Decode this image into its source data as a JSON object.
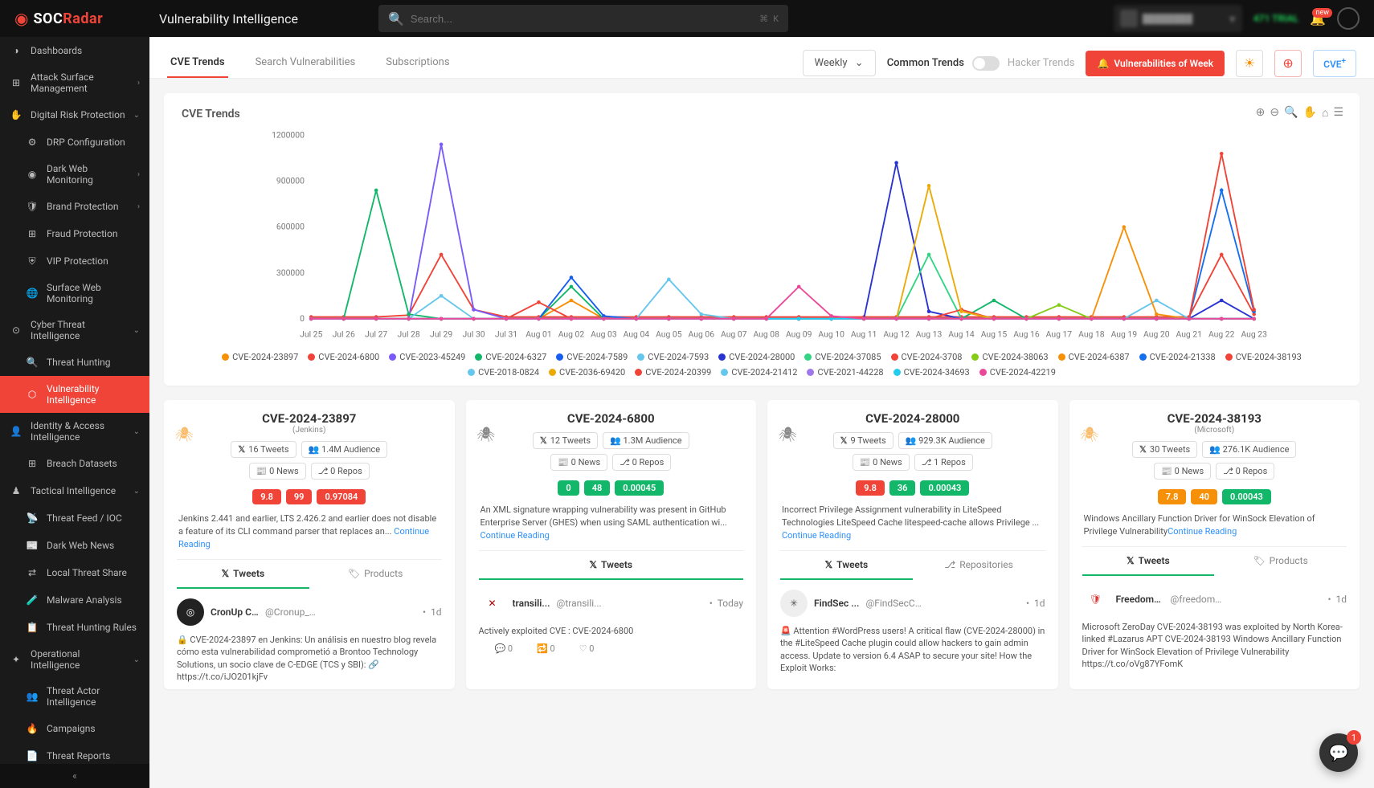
{
  "brand": {
    "part1": "SOC",
    "part2": "Radar"
  },
  "page_title": "Vulnerability Intelligence",
  "search": {
    "placeholder": "Search...",
    "shortcut1": "⌘",
    "shortcut2": "K"
  },
  "topbar": {
    "trial_text": "471 TRIAL",
    "bell_badge": "new"
  },
  "sidebar": [
    {
      "label": "Dashboards",
      "icon": "◑",
      "chev": ""
    },
    {
      "label": "Attack Surface Management",
      "icon": "⊞",
      "chev": "›"
    },
    {
      "label": "Digital Risk Protection",
      "icon": "✋",
      "chev": "⌄"
    },
    {
      "label": "DRP Configuration",
      "icon": "⚙",
      "sub": true
    },
    {
      "label": "Dark Web Monitoring",
      "icon": "◉",
      "sub": true,
      "chev": "›"
    },
    {
      "label": "Brand Protection",
      "icon": "🛡",
      "sub": true,
      "chev": "›"
    },
    {
      "label": "Fraud Protection",
      "icon": "⊞",
      "sub": true
    },
    {
      "label": "VIP Protection",
      "icon": "⛨",
      "sub": true
    },
    {
      "label": "Surface Web Monitoring",
      "icon": "🌐",
      "sub": true
    },
    {
      "label": "Cyber Threat Intelligence",
      "icon": "⊙",
      "chev": "⌄"
    },
    {
      "label": "Threat Hunting",
      "icon": "🔍",
      "sub": true
    },
    {
      "label": "Vulnerability Intelligence",
      "icon": "⬡",
      "sub": true,
      "active": true
    },
    {
      "label": "Identity & Access Intelligence",
      "icon": "👤",
      "chev": "⌄"
    },
    {
      "label": "Breach Datasets",
      "icon": "⊞",
      "sub": true
    },
    {
      "label": "Tactical Intelligence",
      "icon": "♟",
      "chev": "⌄"
    },
    {
      "label": "Threat Feed / IOC",
      "icon": "📡",
      "sub": true
    },
    {
      "label": "Dark Web News",
      "icon": "📰",
      "sub": true
    },
    {
      "label": "Local Threat Share",
      "icon": "⇄",
      "sub": true
    },
    {
      "label": "Malware Analysis",
      "icon": "🧪",
      "sub": true
    },
    {
      "label": "Threat Hunting Rules",
      "icon": "📋",
      "sub": true
    },
    {
      "label": "Operational Intelligence",
      "icon": "✦",
      "chev": "⌄"
    },
    {
      "label": "Threat Actor Intelligence",
      "icon": "👥",
      "sub": true
    },
    {
      "label": "Campaigns",
      "icon": "🔥",
      "sub": true
    },
    {
      "label": "Threat Reports",
      "icon": "📄",
      "sub": true
    }
  ],
  "tabs": [
    "CVE Trends",
    "Search Vulnerabilities",
    "Subscriptions"
  ],
  "active_tab": 0,
  "weekly_label": "Weekly",
  "trend_common": "Common Trends",
  "trend_hacker": "Hacker Trends",
  "btn_vuln_week": "Vulnerabilities of Week",
  "btn_cve": "CVE",
  "chart": {
    "title": "CVE Trends",
    "y_ticks": [
      "1200000",
      "900000",
      "600000",
      "300000",
      "0"
    ],
    "x_labels": [
      "Jul 25",
      "Jul 26",
      "Jul 27",
      "Jul 28",
      "Jul 29",
      "Jul 30",
      "Jul 31",
      "Aug 01",
      "Aug 02",
      "Aug 03",
      "Aug 04",
      "Aug 05",
      "Aug 06",
      "Aug 07",
      "Aug 08",
      "Aug 09",
      "Aug 10",
      "Aug 11",
      "Aug 12",
      "Aug 13",
      "Aug 14",
      "Aug 15",
      "Aug 16",
      "Aug 17",
      "Aug 18",
      "Aug 19",
      "Aug 20",
      "Aug 21",
      "Aug 22",
      "Aug 23"
    ],
    "series": [
      {
        "name": "CVE-2024-23897",
        "color": "#f79009",
        "data": [
          0,
          0,
          0,
          0,
          0,
          0,
          0,
          0,
          20,
          0,
          0,
          0,
          0,
          0,
          0,
          0,
          0,
          0,
          0,
          0,
          0,
          0,
          0,
          0,
          0,
          0,
          0,
          0,
          0,
          0
        ]
      },
      {
        "name": "CVE-2024-6800",
        "color": "#f04438",
        "data": [
          2,
          2,
          2,
          4,
          70,
          10,
          2,
          2,
          2,
          2,
          2,
          2,
          2,
          2,
          2,
          2,
          2,
          2,
          2,
          2,
          2,
          2,
          2,
          2,
          2,
          2,
          2,
          2,
          70,
          5
        ]
      },
      {
        "name": "CVE-2023-45249",
        "color": "#7a5af8",
        "data": [
          0,
          0,
          0,
          0,
          190,
          10,
          0,
          0,
          0,
          0,
          0,
          0,
          0,
          0,
          0,
          0,
          0,
          0,
          0,
          0,
          0,
          0,
          0,
          0,
          0,
          0,
          0,
          0,
          0,
          0
        ]
      },
      {
        "name": "CVE-2024-6327",
        "color": "#12b76a",
        "data": [
          0,
          0,
          140,
          5,
          0,
          0,
          0,
          0,
          35,
          0,
          0,
          0,
          0,
          0,
          0,
          0,
          0,
          0,
          0,
          0,
          0,
          20,
          0,
          0,
          0,
          0,
          0,
          0,
          0,
          0
        ]
      },
      {
        "name": "CVE-2024-7589",
        "color": "#155eef",
        "data": [
          0,
          0,
          0,
          0,
          0,
          0,
          0,
          0,
          45,
          3,
          0,
          0,
          0,
          0,
          0,
          0,
          0,
          0,
          0,
          0,
          0,
          0,
          0,
          0,
          0,
          0,
          0,
          0,
          0,
          0
        ]
      },
      {
        "name": "CVE-2024-7593",
        "color": "#66c7ec",
        "data": [
          0,
          0,
          0,
          0,
          25,
          0,
          0,
          0,
          0,
          0,
          0,
          43,
          5,
          0,
          0,
          0,
          0,
          0,
          0,
          0,
          0,
          0,
          0,
          0,
          0,
          0,
          20,
          0,
          0,
          0
        ]
      },
      {
        "name": "CVE-2024-28000",
        "color": "#2934d0",
        "data": [
          0,
          0,
          0,
          0,
          0,
          0,
          0,
          0,
          0,
          0,
          0,
          0,
          0,
          0,
          0,
          0,
          0,
          0,
          170,
          8,
          0,
          0,
          0,
          0,
          0,
          0,
          0,
          0,
          20,
          0
        ]
      },
      {
        "name": "CVE-2024-37085",
        "color": "#32d583",
        "data": [
          0,
          0,
          0,
          0,
          0,
          0,
          0,
          0,
          0,
          0,
          0,
          0,
          0,
          0,
          0,
          0,
          0,
          0,
          0,
          70,
          0,
          0,
          0,
          0,
          0,
          0,
          0,
          0,
          0,
          0
        ]
      },
      {
        "name": "CVE-2024-3708",
        "color": "#f04438",
        "data": [
          0,
          0,
          0,
          0,
          0,
          0,
          0,
          0,
          0,
          0,
          0,
          0,
          0,
          0,
          0,
          0,
          0,
          0,
          0,
          0,
          10,
          0,
          0,
          0,
          0,
          0,
          0,
          0,
          0,
          0
        ]
      },
      {
        "name": "CVE-2024-38063",
        "color": "#84cc16",
        "data": [
          0,
          0,
          0,
          0,
          0,
          0,
          0,
          0,
          0,
          0,
          0,
          0,
          0,
          0,
          0,
          0,
          0,
          0,
          0,
          0,
          0,
          0,
          0,
          15,
          0,
          0,
          0,
          0,
          0,
          0
        ]
      },
      {
        "name": "CVE-2024-6387",
        "color": "#f79009",
        "data": [
          0,
          0,
          0,
          0,
          0,
          0,
          0,
          0,
          0,
          0,
          0,
          0,
          0,
          0,
          0,
          0,
          0,
          0,
          0,
          0,
          0,
          0,
          0,
          0,
          0,
          100,
          5,
          0,
          0,
          0
        ]
      },
      {
        "name": "CVE-2024-21338",
        "color": "#1570ef",
        "data": [
          0,
          0,
          0,
          0,
          0,
          0,
          0,
          0,
          0,
          0,
          0,
          0,
          0,
          0,
          0,
          0,
          0,
          0,
          0,
          0,
          0,
          0,
          0,
          0,
          0,
          0,
          0,
          0,
          140,
          8
        ]
      },
      {
        "name": "CVE-2024-38193",
        "color": "#f04438",
        "data": [
          0,
          0,
          0,
          0,
          0,
          0,
          0,
          0,
          0,
          0,
          0,
          0,
          0,
          0,
          0,
          0,
          0,
          0,
          0,
          0,
          0,
          0,
          0,
          0,
          0,
          0,
          0,
          0,
          180,
          10
        ]
      },
      {
        "name": "CVE-2018-0824",
        "color": "#66c7ec",
        "data": [
          0,
          0,
          0,
          0,
          0,
          0,
          0,
          0,
          0,
          0,
          0,
          0,
          0,
          0,
          0,
          0,
          0,
          0,
          0,
          0,
          0,
          0,
          0,
          0,
          0,
          0,
          0,
          0,
          0,
          0
        ]
      },
      {
        "name": "CVE-2036-69420",
        "color": "#eaaa08",
        "data": [
          0,
          0,
          0,
          0,
          0,
          0,
          0,
          0,
          0,
          0,
          0,
          0,
          0,
          0,
          0,
          0,
          0,
          0,
          0,
          145,
          8,
          0,
          0,
          0,
          0,
          0,
          0,
          0,
          0,
          0
        ]
      },
      {
        "name": "CVE-2024-20399",
        "color": "#f04438",
        "data": [
          0,
          0,
          0,
          0,
          0,
          0,
          0,
          18,
          0,
          0,
          0,
          0,
          0,
          0,
          0,
          0,
          0,
          0,
          0,
          0,
          0,
          0,
          0,
          0,
          0,
          0,
          0,
          0,
          0,
          0
        ]
      },
      {
        "name": "CVE-2024-21412",
        "color": "#66c7ec",
        "data": [
          0,
          0,
          0,
          0,
          0,
          0,
          0,
          0,
          0,
          0,
          0,
          0,
          0,
          0,
          0,
          0,
          0,
          0,
          0,
          0,
          0,
          0,
          0,
          0,
          0,
          0,
          0,
          0,
          0,
          0
        ]
      },
      {
        "name": "CVE-2021-44228",
        "color": "#9e77ed",
        "data": [
          0,
          0,
          0,
          0,
          0,
          0,
          0,
          0,
          0,
          0,
          0,
          0,
          0,
          0,
          0,
          0,
          0,
          0,
          0,
          0,
          0,
          0,
          0,
          0,
          0,
          0,
          0,
          0,
          0,
          0
        ]
      },
      {
        "name": "CVE-2024-34693",
        "color": "#22ccee",
        "data": [
          0,
          0,
          0,
          0,
          0,
          0,
          0,
          0,
          0,
          0,
          0,
          0,
          0,
          0,
          0,
          0,
          0,
          0,
          0,
          0,
          0,
          0,
          0,
          0,
          0,
          0,
          0,
          0,
          0,
          0
        ]
      },
      {
        "name": "CVE-2024-42219",
        "color": "#ec4899",
        "data": [
          0,
          0,
          0,
          0,
          0,
          0,
          0,
          0,
          0,
          0,
          0,
          0,
          0,
          0,
          0,
          35,
          3,
          0,
          0,
          0,
          0,
          0,
          0,
          0,
          0,
          0,
          0,
          0,
          0,
          0
        ]
      }
    ]
  },
  "cve_cards": [
    {
      "id": "CVE-2024-23897",
      "sub": "(Jenkins)",
      "bug": "🕷",
      "bugclass": "bug-orange",
      "bugcolor": "#f79009",
      "tweets": "16 Tweets",
      "audience": "1.4M Audience",
      "news": "0 News",
      "repos": "0 Repos",
      "scores": [
        {
          "v": "9.8",
          "c": "sc-red"
        },
        {
          "v": "99",
          "c": "sc-red"
        },
        {
          "v": "0.97084",
          "c": "sc-red"
        }
      ],
      "desc": "Jenkins 2.441 and earlier, LTS 2.426.2 and earlier does not disable a feature of its CLI command parser that replaces an... ",
      "cve_tabs": [
        {
          "l": "Tweets",
          "a": true,
          "i": "𝕏"
        },
        {
          "l": "Products",
          "a": false,
          "i": "🏷"
        }
      ],
      "tweet": {
        "name": "CronUp C...",
        "handle": "@Cronup_C...",
        "time": "1d",
        "avatar": "◎",
        "avatarbg": "#222",
        "avcolor": "#fff",
        "text": "🔒 CVE-2024-23897 en Jenkins: Un análisis en nuestro blog revela cómo esta vulnerabilidad comprometió a Brontoo Technology Solutions, un socio clave de C-EDGE (TCS y SBI): 🔗 https://t.co/iJO201kjFv"
      }
    },
    {
      "id": "CVE-2024-6800",
      "sub": "",
      "bug": "🕷",
      "bugclass": "",
      "bugcolor": "#888",
      "tweets": "12 Tweets",
      "audience": "1.3M Audience",
      "news": "0 News",
      "repos": "0 Repos",
      "scores": [
        {
          "v": "0",
          "c": "sc-green"
        },
        {
          "v": "48",
          "c": "sc-green"
        },
        {
          "v": "0.00045",
          "c": "sc-green"
        }
      ],
      "desc": "An XML signature wrapping vulnerability was present in GitHub Enterprise Server (GHES) when using SAML authentication wi... ",
      "cve_tabs": [
        {
          "l": "Tweets",
          "a": true,
          "i": "𝕏"
        }
      ],
      "tweet": {
        "name": "transili...",
        "handle": "@transili...",
        "time": "Today",
        "avatar": "✕",
        "avatarbg": "#fff",
        "avcolor": "#a00",
        "text": "Actively exploited CVE : CVE-2024-6800",
        "actions": [
          "0",
          "0",
          "0"
        ]
      }
    },
    {
      "id": "CVE-2024-28000",
      "sub": "",
      "bug": "🕷",
      "bugclass": "",
      "bugcolor": "#888",
      "tweets": "9 Tweets",
      "audience": "929.3K Audience",
      "news": "0 News",
      "repos": "1 Repos",
      "scores": [
        {
          "v": "9.8",
          "c": "sc-red"
        },
        {
          "v": "36",
          "c": "sc-green"
        },
        {
          "v": "0.00043",
          "c": "sc-green"
        }
      ],
      "desc": "Incorrect Privilege Assignment vulnerability in LiteSpeed Technologies LiteSpeed Cache litespeed-cache allows Privilege ... ",
      "cve_tabs": [
        {
          "l": "Tweets",
          "a": true,
          "i": "𝕏"
        },
        {
          "l": "Repositories",
          "a": false,
          "i": "⎇"
        }
      ],
      "tweet": {
        "name": "FindSec ...",
        "handle": "@FindSecC...",
        "time": "1d",
        "avatar": "✳",
        "avatarbg": "#eee",
        "avcolor": "#555",
        "text": "🚨 Attention #WordPress users! A critical flaw (CVE-2024-28000) in the #LiteSpeed Cache plugin could allow hackers to gain admin access. Update to version 6.4 ASAP to secure your site! How the Exploit Works:"
      }
    },
    {
      "id": "CVE-2024-38193",
      "sub": "(Microsoft)",
      "bug": "🕷",
      "bugclass": "bug-orange",
      "bugcolor": "#f79009",
      "tweets": "30 Tweets",
      "audience": "276.1K Audience",
      "news": "0 News",
      "repos": "0 Repos",
      "scores": [
        {
          "v": "7.8",
          "c": "sc-orange"
        },
        {
          "v": "40",
          "c": "sc-orange"
        },
        {
          "v": "0.00043",
          "c": "sc-green"
        }
      ],
      "desc": "Windows Ancillary Function Driver for WinSock Elevation of Privilege Vulnerability",
      "cve_tabs": [
        {
          "l": "Tweets",
          "a": true,
          "i": "𝕏"
        },
        {
          "l": "Products",
          "a": false,
          "i": "🏷"
        }
      ],
      "tweet": {
        "name": "FreedomH...",
        "handle": "@freedomh...",
        "time": "1d",
        "avatar": "🛡",
        "avatarbg": "#fff",
        "avcolor": "#d33",
        "text": "Microsoft ZeroDay CVE-2024-38193 was exploited by North Korea-linked #Lazarus APT CVE-2024-38193 Windows Ancillary Function Driver for WinSock Elevation of Privilege Vulnerability https://t.co/oVg87YFomK"
      }
    }
  ],
  "continue_reading": "Continue Reading",
  "help_badge": "1"
}
